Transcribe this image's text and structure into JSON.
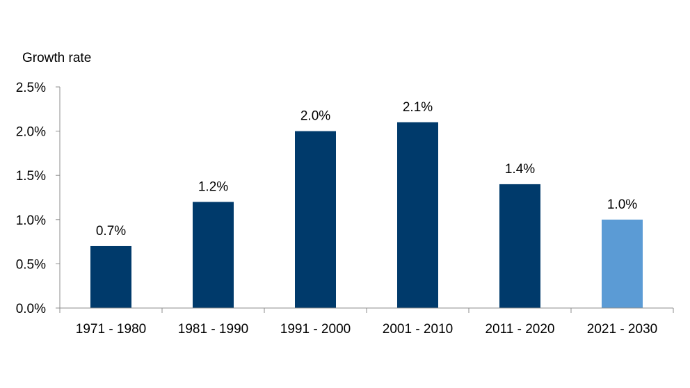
{
  "chart_data": {
    "type": "bar",
    "ylabel": "Growth rate",
    "xlabel": "",
    "categories": [
      "1971 - 1980",
      "1981 - 1990",
      "1991 - 2000",
      "2001 - 2010",
      "2011 - 2020",
      "2021 - 2030"
    ],
    "values": [
      0.7,
      1.2,
      2.0,
      2.1,
      1.4,
      1.0
    ],
    "data_labels": [
      "0.7%",
      "1.2%",
      "2.0%",
      "2.1%",
      "1.4%",
      "1.0%"
    ],
    "ylim": [
      0,
      2.5
    ],
    "y_ticks": [
      0,
      0.5,
      1.0,
      1.5,
      2.0,
      2.5
    ],
    "y_tick_labels": [
      "0.0%",
      "0.5%",
      "1.0%",
      "1.5%",
      "2.0%",
      "2.5%"
    ],
    "grid": false,
    "legend": "none",
    "colors": {
      "historical": "#003a6b",
      "projected": "#5b9bd5",
      "axis": "#8c8c8c"
    },
    "bar_colors": [
      "historical",
      "historical",
      "historical",
      "historical",
      "historical",
      "projected"
    ]
  }
}
